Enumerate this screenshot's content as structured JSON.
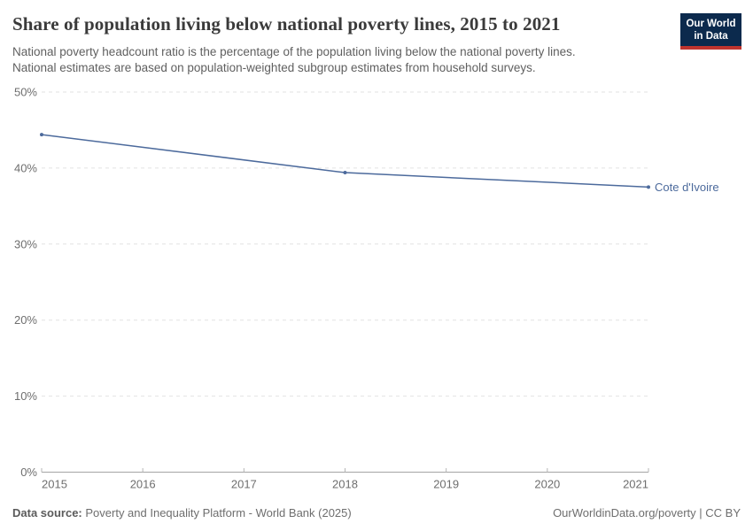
{
  "header": {
    "title": "Share of population living below national poverty lines, 2015 to 2021",
    "subtitle_line1": "National poverty headcount ratio is the percentage of the population living below the national poverty lines.",
    "subtitle_line2": "National estimates are based on population-weighted subgroup estimates from household surveys."
  },
  "logo": {
    "line1": "Our World",
    "line2": "in Data",
    "background": "#0c2a4d",
    "stripe": "#c0342e"
  },
  "chart_data": {
    "type": "line",
    "title": "Share of population living below national poverty lines, 2015 to 2021",
    "series": [
      {
        "name": "Cote d'Ivoire",
        "color": "#4c6a9c",
        "points": [
          {
            "x": 2015,
            "y": 44.4
          },
          {
            "x": 2018,
            "y": 39.4
          },
          {
            "x": 2021,
            "y": 37.5
          }
        ]
      }
    ],
    "x_ticks": [
      2015,
      2016,
      2017,
      2018,
      2019,
      2020,
      2021
    ],
    "y_ticks": [
      0,
      10,
      20,
      30,
      40,
      50
    ],
    "y_tick_suffix": "%",
    "xlim": [
      2015,
      2021
    ],
    "ylim": [
      0,
      50
    ],
    "grid": "horizontal-dashed",
    "legend": "series-end-label",
    "axis_label_color": "#6e6e6e",
    "gridline_color": "#e2e2e2",
    "axis_line_color": "#a5a5a5"
  },
  "footer": {
    "data_source_label": "Data source:",
    "data_source_value": "Poverty and Inequality Platform - World Bank (2025)",
    "right_text": "OurWorldinData.org/poverty | CC BY"
  }
}
